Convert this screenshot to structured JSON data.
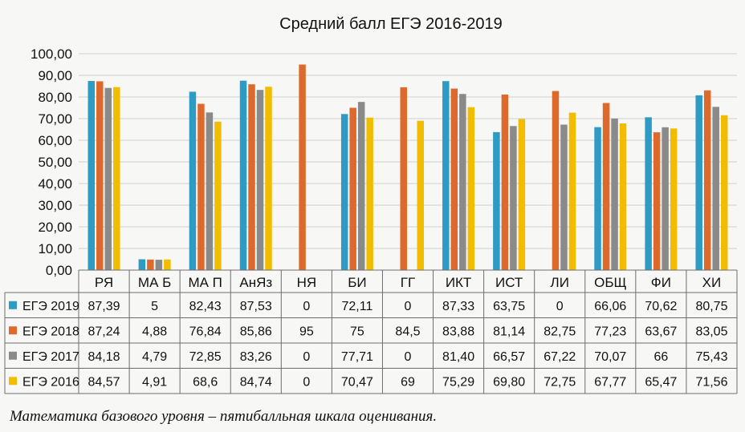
{
  "chart_data": {
    "type": "bar",
    "title": "Средний балл ЕГЭ 2016-2019",
    "xlabel": "",
    "ylabel": "",
    "ylim": [
      0,
      100
    ],
    "yticks": [
      "0,00",
      "10,00",
      "20,00",
      "30,00",
      "40,00",
      "50,00",
      "60,00",
      "70,00",
      "80,00",
      "90,00",
      "100,00"
    ],
    "grid": true,
    "legend_position": "data-table",
    "categories": [
      "РЯ",
      "МА Б",
      "МА П",
      "АнЯз",
      "НЯ",
      "БИ",
      "ГГ",
      "ИКТ",
      "ИСТ",
      "ЛИ",
      "ОБЩ",
      "ФИ",
      "ХИ"
    ],
    "series": [
      {
        "name": "ЕГЭ 2019",
        "color": "#2e9bc4",
        "values": [
          87.39,
          5,
          82.43,
          87.53,
          0,
          72.11,
          0,
          87.33,
          63.75,
          0,
          66.06,
          70.62,
          80.75
        ],
        "labels": [
          "87,39",
          "5",
          "82,43",
          "87,53",
          "0",
          "72,11",
          "0",
          "87,33",
          "63,75",
          "0",
          "66,06",
          "70,62",
          "80,75"
        ]
      },
      {
        "name": "ЕГЭ 2018",
        "color": "#dd6a2c",
        "values": [
          87.24,
          4.88,
          76.84,
          85.86,
          95,
          75,
          84.5,
          83.88,
          81.14,
          82.75,
          77.23,
          63.67,
          83.05
        ],
        "labels": [
          "87,24",
          "4,88",
          "76,84",
          "85,86",
          "95",
          "75",
          "84,5",
          "83,88",
          "81,14",
          "82,75",
          "77,23",
          "63,67",
          "83,05"
        ]
      },
      {
        "name": "ЕГЭ 2017",
        "color": "#8a8a8a",
        "values": [
          84.18,
          4.79,
          72.85,
          83.26,
          0,
          77.71,
          0,
          81.4,
          66.57,
          67.22,
          70.07,
          66,
          75.43
        ],
        "labels": [
          "84,18",
          "4,79",
          "72,85",
          "83,26",
          "0",
          "77,71",
          "0",
          "81,40",
          "66,57",
          "67,22",
          "70,07",
          "66",
          "75,43"
        ]
      },
      {
        "name": "ЕГЭ 2016",
        "color": "#f2bd00",
        "values": [
          84.57,
          4.91,
          68.6,
          84.74,
          0,
          70.47,
          69,
          75.29,
          69.8,
          72.75,
          67.77,
          65.47,
          71.56
        ],
        "labels": [
          "84,57",
          "4,91",
          "68,6",
          "84,74",
          "0",
          "70,47",
          "69",
          "75,29",
          "69,80",
          "72,75",
          "67,77",
          "65,47",
          "71,56"
        ]
      }
    ]
  },
  "caption": "Математика базового уровня – пятибалльная шкала оценивания."
}
